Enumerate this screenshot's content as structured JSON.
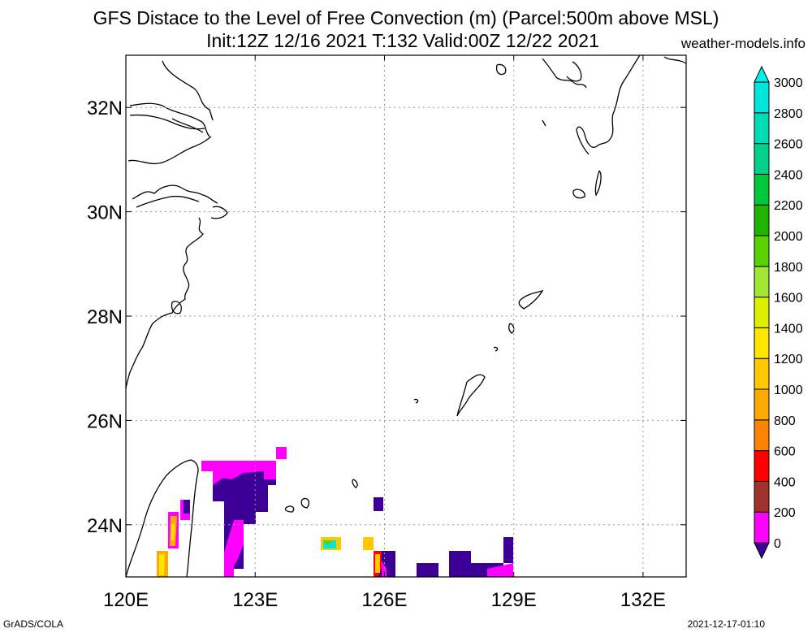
{
  "title_line1": "GFS Distace to the Level of Free Convection (m) (Parcel:500m above MSL)",
  "title_line2": "Init:12Z 12/16 2021 T:132 Valid:00Z 12/22 2021",
  "site": "weather-models.info",
  "footer_left": "GrADS/COLA",
  "footer_right": "2021-12-17-01:10",
  "map": {
    "lon_range": [
      120,
      133
    ],
    "lat_range": [
      23,
      33
    ],
    "lon_ticks": [
      {
        "value": 120,
        "label": "120E"
      },
      {
        "value": 123,
        "label": "123E"
      },
      {
        "value": 126,
        "label": "126E"
      },
      {
        "value": 129,
        "label": "129E"
      },
      {
        "value": 132,
        "label": "132E"
      }
    ],
    "lat_ticks": [
      {
        "value": 24,
        "label": "24N"
      },
      {
        "value": 26,
        "label": "26N"
      },
      {
        "value": 28,
        "label": "28N"
      },
      {
        "value": 30,
        "label": "30N"
      },
      {
        "value": 32,
        "label": "32N"
      }
    ],
    "grid": true
  },
  "colorbar": {
    "levels": [
      0,
      200,
      400,
      600,
      800,
      1000,
      1200,
      1400,
      1600,
      1800,
      2000,
      2200,
      2400,
      2600,
      2800,
      3000
    ],
    "colors": [
      "#3c0096",
      "#ff00ff",
      "#a0322d",
      "#ff0000",
      "#ff8200",
      "#ffaa00",
      "#ffc800",
      "#ffe600",
      "#dcf000",
      "#a0e632",
      "#5ad200",
      "#1eb400",
      "#00c83c",
      "#00d28c",
      "#00dcb4",
      "#00e6dc",
      "#00f0f0"
    ]
  }
}
